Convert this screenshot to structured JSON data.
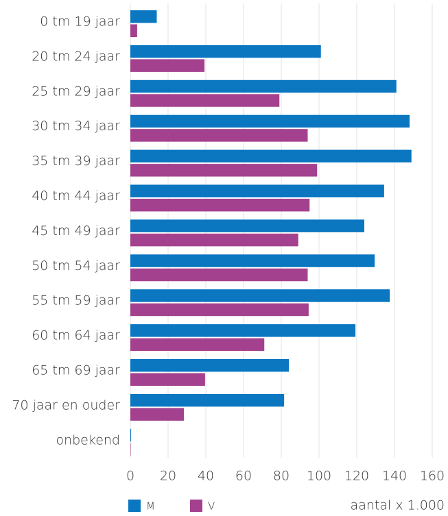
{
  "chart_data": {
    "type": "bar",
    "orientation": "horizontal",
    "categories": [
      "0 tm 19 jaar",
      "20 tm 24 jaar",
      "25 tm 29 jaar",
      "30 tm 34 jaar",
      "35 tm 39 jaar",
      "40 tm 44 jaar",
      "45 tm 49 jaar",
      "50 tm 54 jaar",
      "55 tm 59 jaar",
      "60 tm 64 jaar",
      "65 tm 69 jaar",
      "70 jaar en ouder",
      "onbekend"
    ],
    "series": [
      {
        "name": "M",
        "color": "#0b77c1",
        "values": [
          14,
          101,
          141,
          148,
          149,
          134.5,
          124,
          129.5,
          137.5,
          119.3,
          84,
          81.5,
          0.4
        ]
      },
      {
        "name": "V",
        "color": "#a4418e",
        "values": [
          3.6,
          39.3,
          79,
          94,
          99,
          95,
          89,
          94,
          94.5,
          71,
          39.6,
          28.4,
          0.2
        ]
      }
    ],
    "xlabel": "aantal x 1.000",
    "xlim": [
      0,
      160
    ],
    "xticks": [
      0,
      20,
      40,
      60,
      80,
      100,
      120,
      140,
      160
    ],
    "grid": true,
    "legend": "bottom-left"
  }
}
